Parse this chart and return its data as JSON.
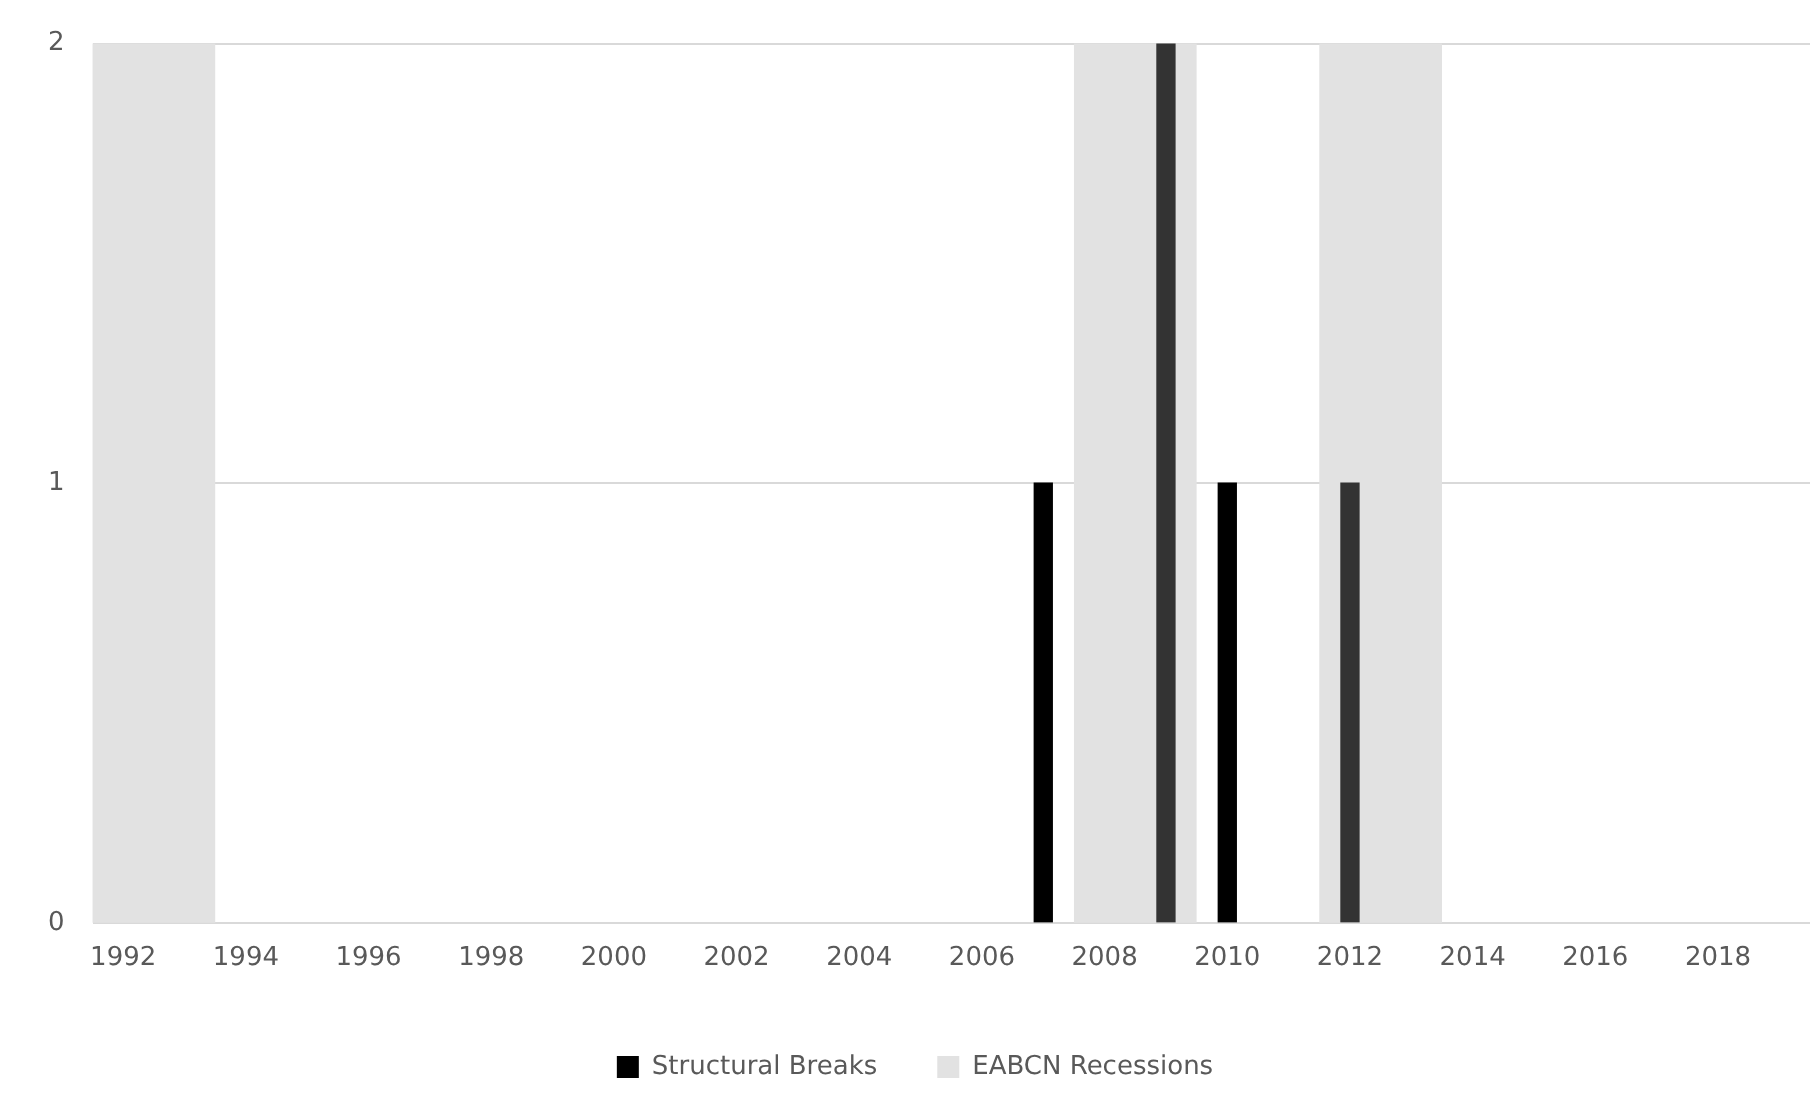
{
  "chart_data": {
    "type": "bar",
    "series": [
      {
        "name": "Structural Breaks",
        "x": [
          2007,
          2009,
          2010,
          2012
        ],
        "values": [
          1,
          2,
          1,
          1
        ],
        "colors": [
          "#000000",
          "#333333",
          "#000000",
          "#333333"
        ]
      }
    ],
    "bands": [
      {
        "axis": "x",
        "from": 1991.5,
        "to": 1993.5,
        "color": "#e2e2e2",
        "label": "EABCN Recessions"
      },
      {
        "axis": "x",
        "from": 2007.5,
        "to": 2009.5,
        "color": "#e2e2e2"
      },
      {
        "axis": "x",
        "from": 2011.5,
        "to": 2013.5,
        "color": "#e2e2e2"
      }
    ],
    "xlim": [
      1991.5,
      2019.5
    ],
    "xticks": [
      1992,
      1994,
      1996,
      1998,
      2000,
      2002,
      2004,
      2006,
      2008,
      2010,
      2012,
      2014,
      2016,
      2018
    ],
    "ylim": [
      0,
      2
    ],
    "yticks": [
      0,
      1,
      2
    ],
    "grid": "y",
    "legend": "bottom"
  }
}
